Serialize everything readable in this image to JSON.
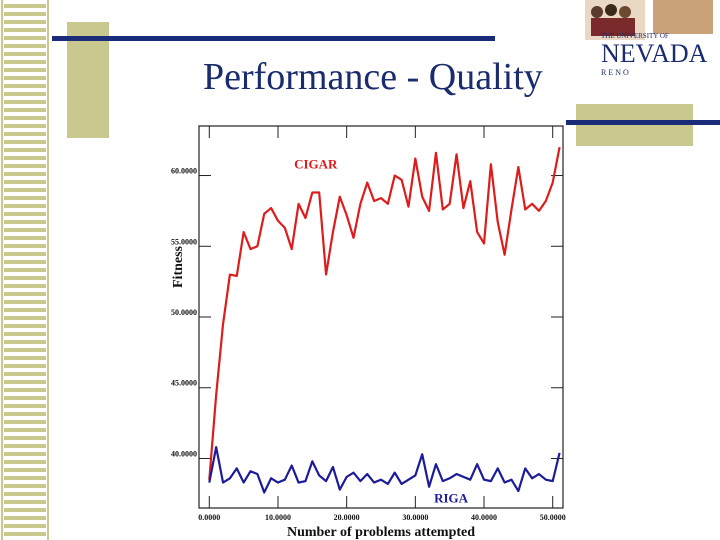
{
  "slide": {
    "title": "Performance - Quality"
  },
  "logo": {
    "top_text": "THE UNIVERSITY OF",
    "main_text": "NEVADA",
    "sub_text": "R E N O"
  },
  "colors": {
    "title": "#1a2b6e",
    "accent_tan": "#c8c88f",
    "navy": "#1a2b7a",
    "cigar": "#dd1c1c",
    "riga": "#1c1c99"
  },
  "chart_data": {
    "type": "line",
    "title": "",
    "xlabel": "Number of problems attempted",
    "ylabel": "Fitness",
    "xlim": [
      -1.5,
      51.5
    ],
    "ylim": [
      36.5,
      63.5
    ],
    "xticks": [
      0,
      10,
      20,
      30,
      40,
      50
    ],
    "xtick_labels": [
      "0.0000",
      "10.0000",
      "20.0000",
      "30.0000",
      "40.0000",
      "50.0000"
    ],
    "yticks": [
      40,
      45,
      50,
      55,
      60
    ],
    "ytick_labels": [
      "40.0000",
      "45.0000",
      "50.0000",
      "55.0000",
      "60.0000"
    ],
    "grid": false,
    "x": [
      0,
      1,
      2,
      3,
      4,
      5,
      6,
      7,
      8,
      9,
      10,
      11,
      12,
      13,
      14,
      15,
      16,
      17,
      18,
      19,
      20,
      21,
      22,
      23,
      24,
      25,
      26,
      27,
      28,
      29,
      30,
      31,
      32,
      33,
      34,
      35,
      36,
      37,
      38,
      39,
      40,
      41,
      42,
      43,
      44,
      45,
      46,
      47,
      48,
      49,
      50,
      51
    ],
    "series": [
      {
        "name": "CIGAR",
        "values": [
          38.5,
          44.5,
          49.5,
          53.0,
          52.9,
          56.0,
          54.8,
          55.0,
          57.3,
          57.7,
          56.8,
          56.3,
          54.8,
          58.0,
          57.0,
          58.8,
          58.8,
          53.0,
          56.0,
          58.5,
          57.2,
          55.6,
          58.0,
          59.5,
          58.2,
          58.4,
          58.0,
          60.0,
          59.7,
          57.8,
          61.2,
          58.5,
          57.5,
          61.6,
          57.6,
          58.0,
          61.5,
          57.7,
          59.6,
          56.0,
          55.2,
          60.8,
          56.7,
          54.4,
          57.6,
          60.6,
          57.6,
          58.0,
          57.5,
          58.2,
          59.5,
          62.0
        ]
      },
      {
        "name": "RIGA",
        "values": [
          38.3,
          40.8,
          38.3,
          38.6,
          39.3,
          38.3,
          39.1,
          38.9,
          37.6,
          38.6,
          38.3,
          38.5,
          39.5,
          38.3,
          38.4,
          39.8,
          38.8,
          38.4,
          39.4,
          37.8,
          38.7,
          39.0,
          38.4,
          38.9,
          38.3,
          38.5,
          38.2,
          39.0,
          38.2,
          38.5,
          38.8,
          40.3,
          38.0,
          39.6,
          38.4,
          38.6,
          38.9,
          38.7,
          38.5,
          39.6,
          38.5,
          38.4,
          39.3,
          38.3,
          38.5,
          37.7,
          39.3,
          38.6,
          38.9,
          38.5,
          38.4,
          40.4
        ]
      }
    ],
    "annotations": [
      "CIGAR",
      "RIGA"
    ]
  }
}
